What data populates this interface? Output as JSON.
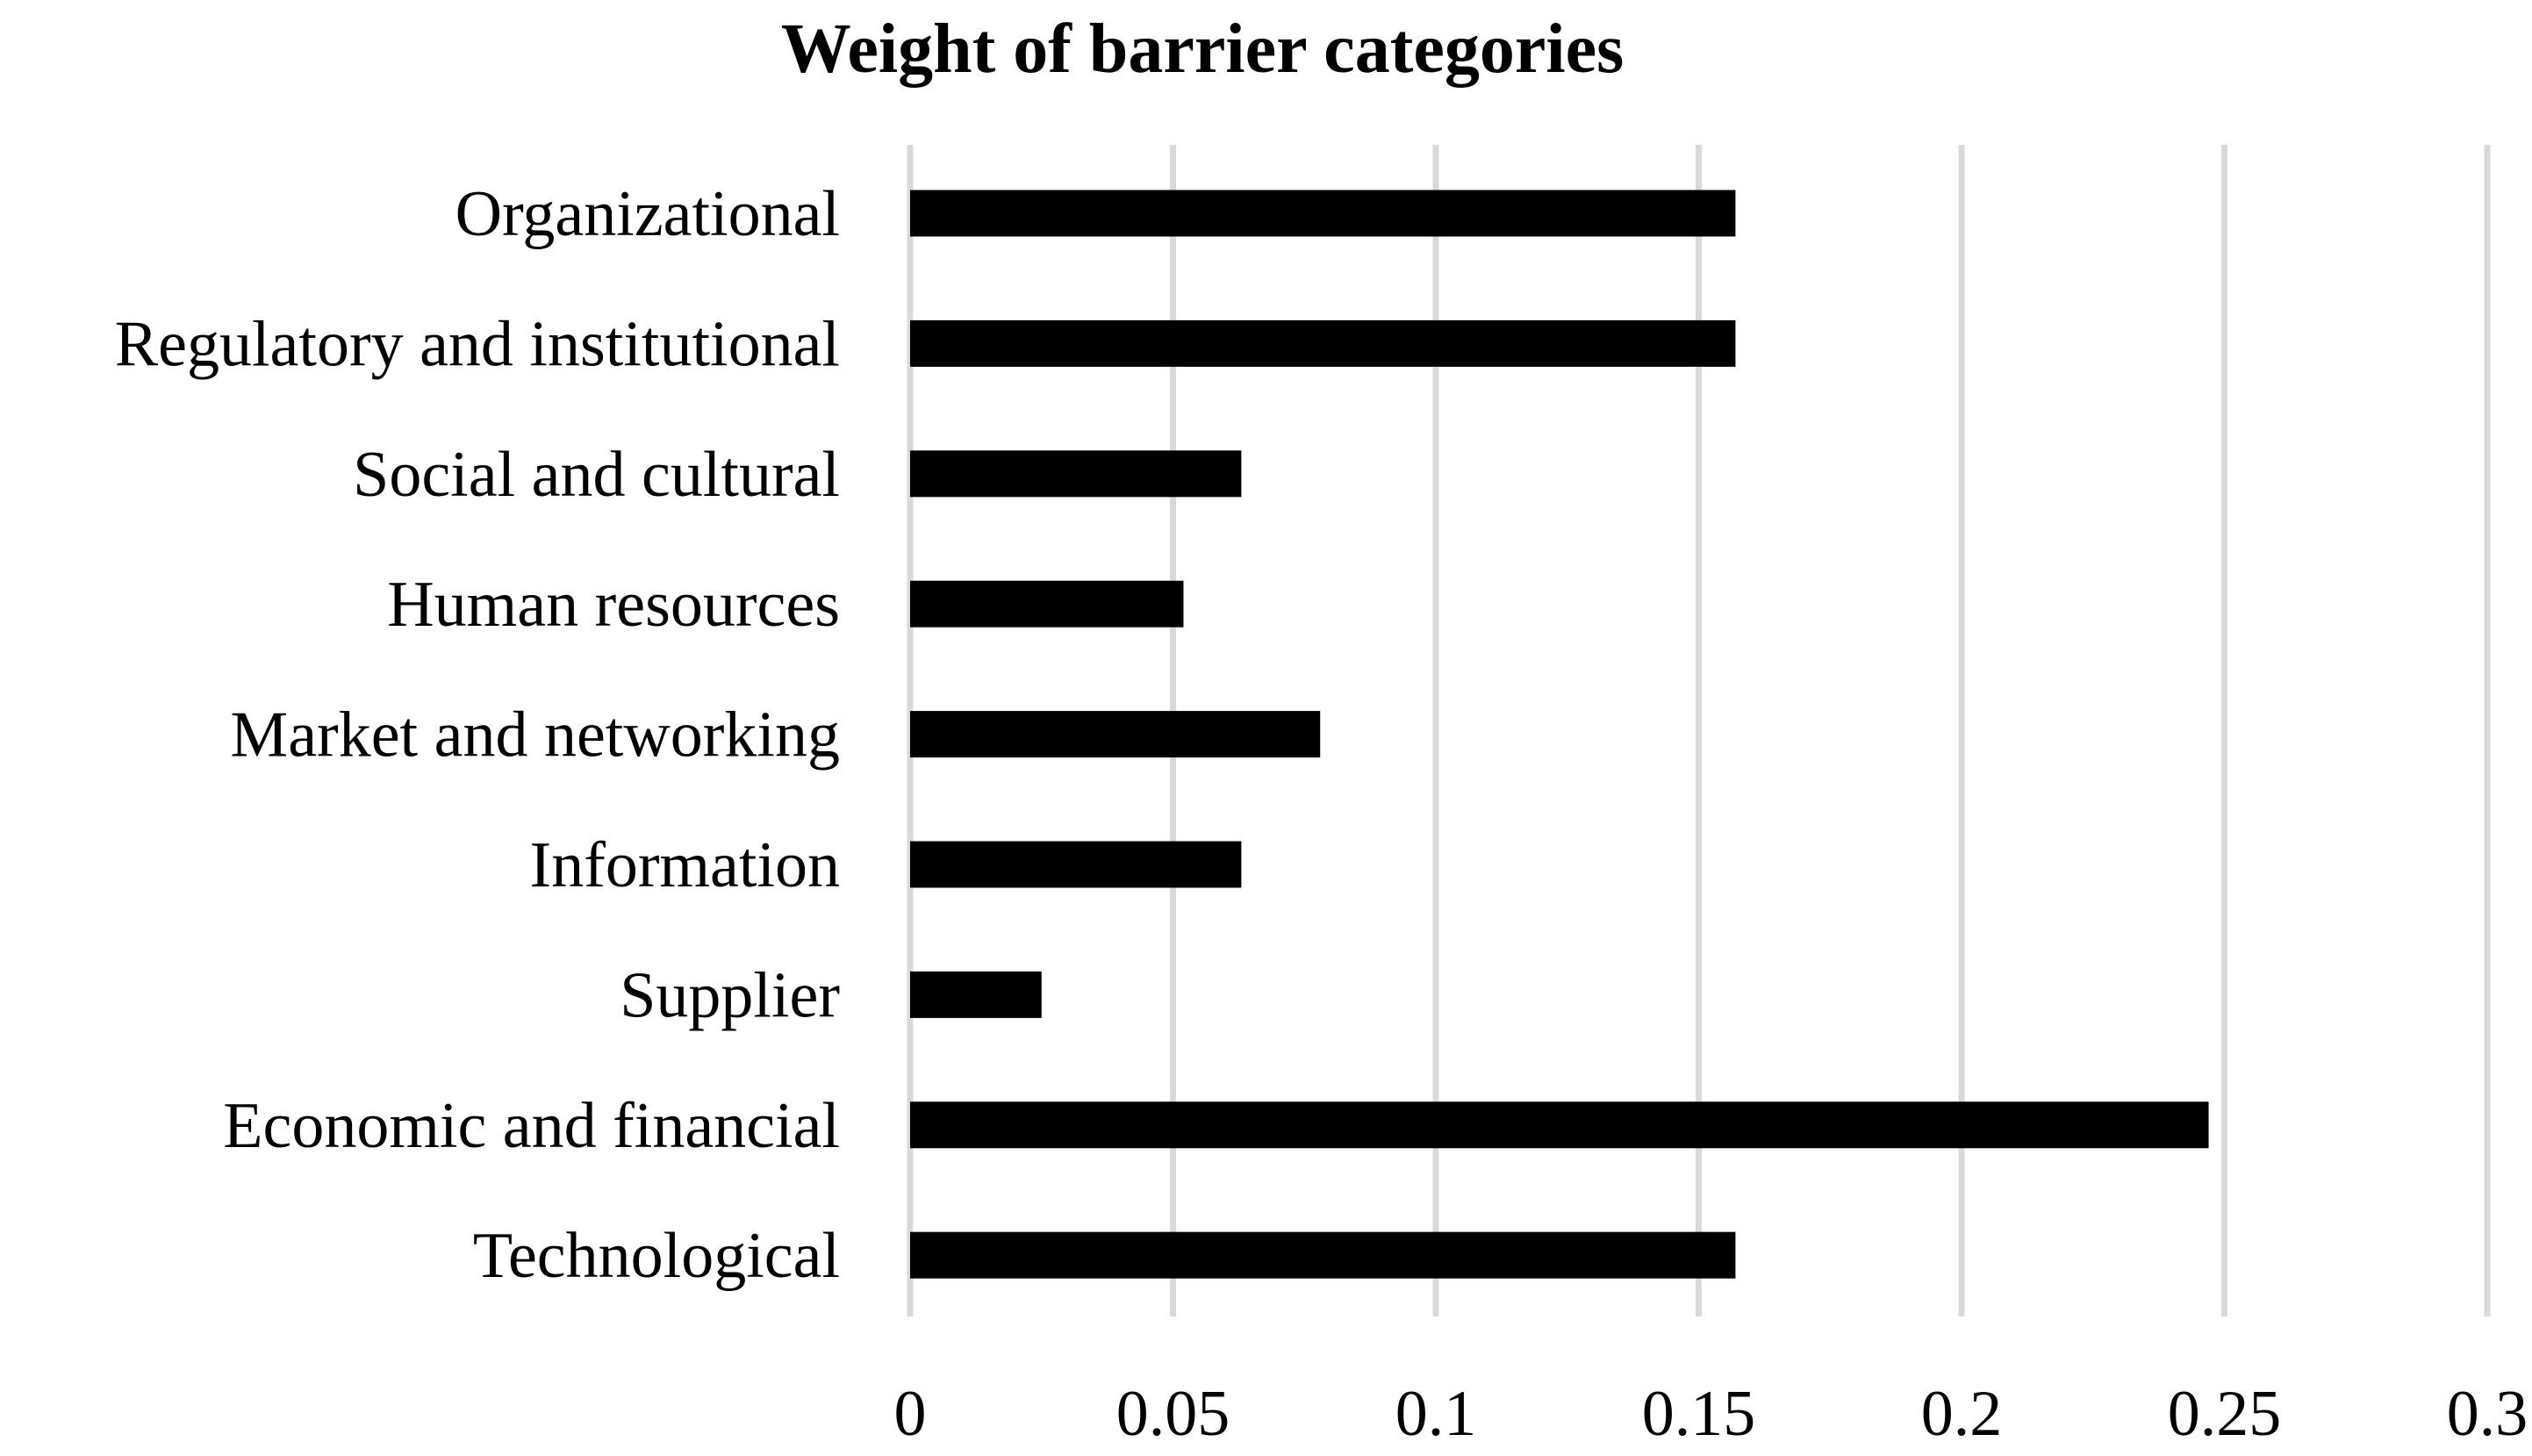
{
  "chart_data": {
    "type": "bar",
    "orientation": "horizontal",
    "title": "Weight of barrier categories",
    "xlabel": "",
    "ylabel": "",
    "categories": [
      "Organizational",
      "Regulatory and institutional",
      "Social and cultural",
      "Human resources",
      "Market and networking",
      "Information",
      "Supplier",
      "Economic and financial",
      "Technological"
    ],
    "values": [
      0.157,
      0.157,
      0.063,
      0.052,
      0.078,
      0.063,
      0.025,
      0.247,
      0.157
    ],
    "x_ticks": [
      "0",
      "0.05",
      "0.1",
      "0.15",
      "0.2",
      "0.25",
      "0.3"
    ],
    "xlim": [
      0,
      0.3
    ],
    "grid": true,
    "legend": "none",
    "colors": {
      "bar": "#000000",
      "grid": "#d9d9d9",
      "background": "#ffffff"
    }
  }
}
